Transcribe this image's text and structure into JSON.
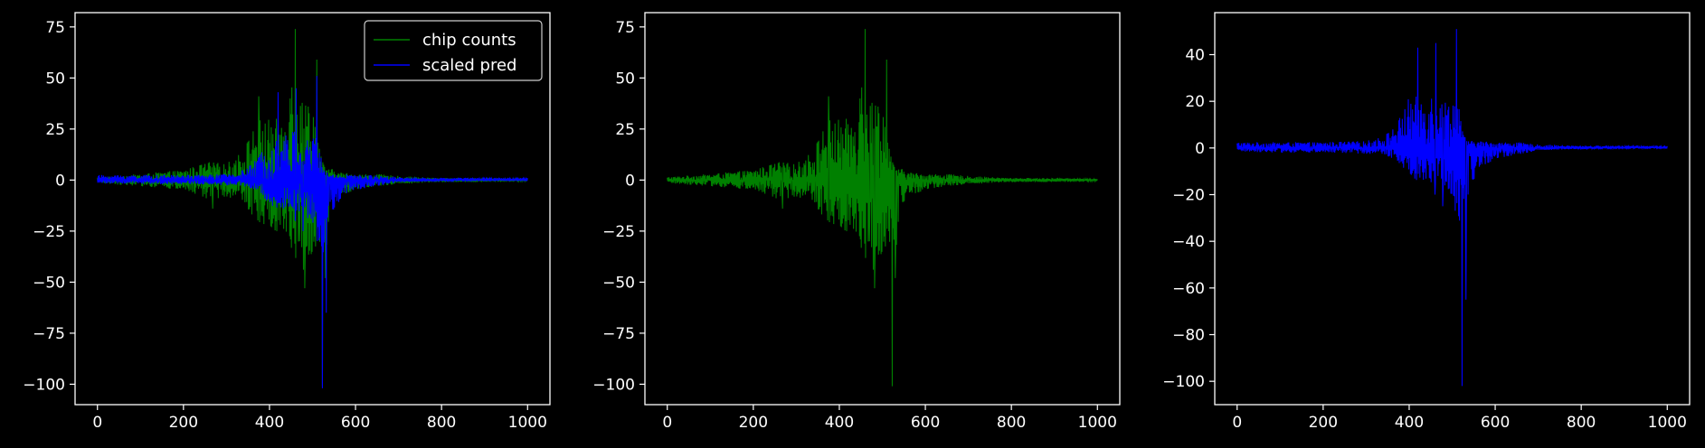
{
  "figure": {
    "background": "#000000",
    "axis_color": "#ffffff"
  },
  "chart_data": [
    {
      "type": "line",
      "xlim": [
        -52,
        1052
      ],
      "ylim": [
        -110,
        82
      ],
      "xticks": [
        0,
        200,
        400,
        600,
        800,
        1000
      ],
      "yticks": [
        -100,
        -75,
        -50,
        -25,
        0,
        25,
        50,
        75
      ],
      "legend": {
        "placement": "top-right",
        "entries": [
          "chip counts",
          "scaled pred"
        ]
      },
      "series": [
        {
          "name": "chip counts",
          "color": "#008000",
          "profile": {
            "x": [
              0,
              100,
              200,
              260,
              300,
              340,
              370,
              400,
              430,
              460,
              480,
              500,
              515,
              525,
              540,
              560,
              600,
              650,
              700,
              800,
              900,
              1000
            ],
            "upper": [
              1.5,
              3,
              5,
              9,
              8,
              15,
              30,
              30,
              30,
              60,
              38,
              40,
              20,
              8,
              6,
              4,
              3,
              3,
              2,
              1,
              1,
              0.5
            ],
            "lower": [
              -1.5,
              -3,
              -5,
              -10,
              -8,
              -12,
              -20,
              -25,
              -25,
              -40,
              -45,
              -35,
              -30,
              -55,
              -15,
              -8,
              -5,
              -3,
              -2,
              -1,
              -1,
              -0.5
            ]
          },
          "spikes": [
            {
              "x": 460,
              "y": 74
            },
            {
              "x": 510,
              "y": 59
            },
            {
              "x": 375,
              "y": 41
            },
            {
              "x": 448,
              "y": 40
            },
            {
              "x": 490,
              "y": 36
            },
            {
              "x": 482,
              "y": -53
            },
            {
              "x": 523,
              "y": -101
            },
            {
              "x": 530,
              "y": -48
            },
            {
              "x": 268,
              "y": -14
            },
            {
              "x": 470,
              "y": -30
            }
          ]
        },
        {
          "name": "scaled pred",
          "color": "#0000ff",
          "profile": {
            "x": [
              0,
              100,
              200,
              300,
              340,
              370,
              400,
              430,
              460,
              480,
              500,
              515,
              525,
              540,
              570,
              600,
              650,
              700,
              800,
              900,
              1000
            ],
            "upper": [
              2.5,
              2.5,
              2.5,
              3,
              5,
              10,
              22,
              22,
              25,
              20,
              22,
              22,
              6,
              3,
              3,
              2.5,
              2.5,
              1.5,
              1,
              1,
              1
            ],
            "lower": [
              -1.5,
              -2,
              -2,
              -2.5,
              -3,
              -5,
              -12,
              -15,
              -16,
              -18,
              -20,
              -35,
              -40,
              -18,
              -8,
              -5,
              -3,
              -1,
              -0.5,
              0,
              0
            ]
          },
          "spikes": [
            {
              "x": 420,
              "y": 43
            },
            {
              "x": 462,
              "y": 45
            },
            {
              "x": 510,
              "y": 51
            },
            {
              "x": 523,
              "y": -102
            },
            {
              "x": 532,
              "y": -65
            },
            {
              "x": 478,
              "y": -25
            },
            {
              "x": 460,
              "y": -20
            }
          ]
        }
      ]
    },
    {
      "type": "line",
      "xlim": [
        -52,
        1052
      ],
      "ylim": [
        -110,
        82
      ],
      "xticks": [
        0,
        200,
        400,
        600,
        800,
        1000
      ],
      "yticks": [
        -100,
        -75,
        -50,
        -25,
        0,
        25,
        50,
        75
      ],
      "series": [
        {
          "color": "#008000",
          "profile": {
            "x": [
              0,
              100,
              200,
              260,
              300,
              340,
              370,
              400,
              430,
              460,
              480,
              500,
              515,
              525,
              540,
              560,
              600,
              650,
              700,
              800,
              900,
              1000
            ],
            "upper": [
              1.5,
              3,
              5,
              9,
              8,
              15,
              30,
              30,
              30,
              60,
              38,
              40,
              20,
              8,
              6,
              4,
              3,
              3,
              2,
              1,
              1,
              0.5
            ],
            "lower": [
              -1.5,
              -3,
              -5,
              -10,
              -8,
              -12,
              -20,
              -25,
              -25,
              -40,
              -45,
              -35,
              -30,
              -55,
              -15,
              -8,
              -5,
              -3,
              -2,
              -1,
              -1,
              -0.5
            ]
          },
          "spikes": [
            {
              "x": 460,
              "y": 74
            },
            {
              "x": 510,
              "y": 59
            },
            {
              "x": 375,
              "y": 41
            },
            {
              "x": 448,
              "y": 40
            },
            {
              "x": 490,
              "y": 36
            },
            {
              "x": 482,
              "y": -53
            },
            {
              "x": 523,
              "y": -101
            },
            {
              "x": 530,
              "y": -48
            },
            {
              "x": 268,
              "y": -14
            },
            {
              "x": 470,
              "y": -30
            }
          ]
        }
      ]
    },
    {
      "type": "line",
      "xlim": [
        -52,
        1052
      ],
      "ylim": [
        -110,
        58
      ],
      "xticks": [
        0,
        200,
        400,
        600,
        800,
        1000
      ],
      "yticks": [
        -100,
        -80,
        -60,
        -40,
        -20,
        0,
        20,
        40
      ],
      "series": [
        {
          "color": "#0000ff",
          "profile": {
            "x": [
              0,
              100,
              200,
              300,
              340,
              370,
              400,
              430,
              460,
              480,
              500,
              515,
              525,
              540,
              570,
              600,
              650,
              700,
              800,
              900,
              1000
            ],
            "upper": [
              2.5,
              2.5,
              2.5,
              3,
              5,
              10,
              22,
              22,
              25,
              20,
              22,
              22,
              6,
              3,
              3,
              2.5,
              2.5,
              1.5,
              1,
              1,
              1
            ],
            "lower": [
              -1.5,
              -2,
              -2,
              -2.5,
              -3,
              -5,
              -12,
              -15,
              -16,
              -18,
              -20,
              -35,
              -40,
              -18,
              -8,
              -5,
              -3,
              -1,
              -0.5,
              0,
              0
            ]
          },
          "spikes": [
            {
              "x": 420,
              "y": 43
            },
            {
              "x": 462,
              "y": 45
            },
            {
              "x": 510,
              "y": 51
            },
            {
              "x": 523,
              "y": -102
            },
            {
              "x": 532,
              "y": -65
            },
            {
              "x": 478,
              "y": -25
            },
            {
              "x": 460,
              "y": -20
            }
          ]
        }
      ]
    }
  ]
}
